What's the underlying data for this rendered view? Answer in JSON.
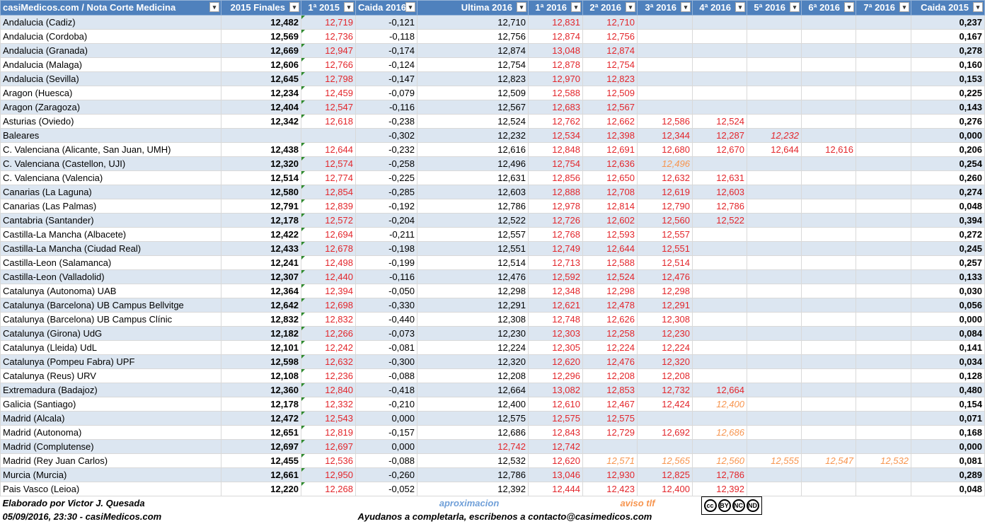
{
  "headers": [
    "casiMedicos.com / Nota Corte Medicina",
    "2015 Finales",
    "1ª 2015",
    "Caida 2016",
    "Ultima 2016",
    "1ª 2016",
    "2ª 2016",
    "3ª 2016",
    "4ª 2016",
    "5ª 2016",
    "6ª 2016",
    "7ª 2016",
    "Caida 2015"
  ],
  "rows": [
    {
      "name": "Andalucia (Cadiz)",
      "f2015": "12,482",
      "p2015": "12,719",
      "caida2016": "-0,121",
      "ultima": "12,710",
      "r1": "12,831",
      "r2": "12,710",
      "r3": "",
      "r4": "",
      "r5": "",
      "r6": "",
      "r7": "",
      "caida2015": "0,237"
    },
    {
      "name": "Andalucia (Cordoba)",
      "f2015": "12,569",
      "p2015": "12,736",
      "caida2016": "-0,118",
      "ultima": "12,756",
      "r1": "12,874",
      "r2": "12,756",
      "r3": "",
      "r4": "",
      "r5": "",
      "r6": "",
      "r7": "",
      "caida2015": "0,167"
    },
    {
      "name": "Andalucia (Granada)",
      "f2015": "12,669",
      "p2015": "12,947",
      "caida2016": "-0,174",
      "ultima": "12,874",
      "r1": "13,048",
      "r2": "12,874",
      "r3": "",
      "r4": "",
      "r5": "",
      "r6": "",
      "r7": "",
      "caida2015": "0,278"
    },
    {
      "name": "Andalucia (Malaga)",
      "f2015": "12,606",
      "p2015": "12,766",
      "caida2016": "-0,124",
      "ultima": "12,754",
      "r1": "12,878",
      "r2": "12,754",
      "r3": "",
      "r4": "",
      "r5": "",
      "r6": "",
      "r7": "",
      "caida2015": "0,160"
    },
    {
      "name": "Andalucia (Sevilla)",
      "f2015": "12,645",
      "p2015": "12,798",
      "caida2016": "-0,147",
      "ultima": "12,823",
      "r1": "12,970",
      "r2": "12,823",
      "r3": "",
      "r4": "",
      "r5": "",
      "r6": "",
      "r7": "",
      "caida2015": "0,153"
    },
    {
      "name": "Aragon (Huesca)",
      "f2015": "12,234",
      "p2015": "12,459",
      "caida2016": "-0,079",
      "ultima": "12,509",
      "r1": "12,588",
      "r2": "12,509",
      "r3": "",
      "r4": "",
      "r5": "",
      "r6": "",
      "r7": "",
      "caida2015": "0,225"
    },
    {
      "name": "Aragon (Zaragoza)",
      "f2015": "12,404",
      "p2015": "12,547",
      "caida2016": "-0,116",
      "ultima": "12,567",
      "r1": "12,683",
      "r2": "12,567",
      "r3": "",
      "r4": "",
      "r5": "",
      "r6": "",
      "r7": "",
      "caida2015": "0,143"
    },
    {
      "name": "Asturias (Oviedo)",
      "f2015": "12,342",
      "p2015": "12,618",
      "caida2016": "-0,238",
      "ultima": "12,524",
      "r1": "12,762",
      "r2": "12,662",
      "r3": "12,586",
      "r4": "12,524",
      "r5": "",
      "r6": "",
      "r7": "",
      "caida2015": "0,276"
    },
    {
      "name": "Baleares",
      "f2015": "",
      "p2015": "",
      "caida2016": "-0,302",
      "ultima": "12,232",
      "r1": "12,534",
      "r2": "12,398",
      "r3": "12,344",
      "r4": "12,287",
      "r5": "12,232",
      "r6": "",
      "r7": "",
      "caida2015": "0,000",
      "italic": [
        "r5"
      ]
    },
    {
      "name": "C. Valenciana (Alicante, San Juan, UMH)",
      "f2015": "12,438",
      "p2015": "12,644",
      "caida2016": "-0,232",
      "ultima": "12,616",
      "r1": "12,848",
      "r2": "12,691",
      "r3": "12,680",
      "r4": "12,670",
      "r5": "12,644",
      "r6": "12,616",
      "r7": "",
      "caida2015": "0,206"
    },
    {
      "name": "C. Valenciana (Castellon, UJI)",
      "f2015": "12,320",
      "p2015": "12,574",
      "caida2016": "-0,258",
      "ultima": "12,496",
      "r1": "12,754",
      "r2": "12,636",
      "r3": "12,496",
      "r4": "",
      "r5": "",
      "r6": "",
      "r7": "",
      "caida2015": "0,254",
      "orange": [
        "r3"
      ]
    },
    {
      "name": "C. Valenciana (Valencia)",
      "f2015": "12,514",
      "p2015": "12,774",
      "caida2016": "-0,225",
      "ultima": "12,631",
      "r1": "12,856",
      "r2": "12,650",
      "r3": "12,632",
      "r4": "12,631",
      "r5": "",
      "r6": "",
      "r7": "",
      "caida2015": "0,260"
    },
    {
      "name": "Canarias (La Laguna)",
      "f2015": "12,580",
      "p2015": "12,854",
      "caida2016": "-0,285",
      "ultima": "12,603",
      "r1": "12,888",
      "r2": "12,708",
      "r3": "12,619",
      "r4": "12,603",
      "r5": "",
      "r6": "",
      "r7": "",
      "caida2015": "0,274"
    },
    {
      "name": "Canarias (Las Palmas)",
      "f2015": "12,791",
      "p2015": "12,839",
      "caida2016": "-0,192",
      "ultima": "12,786",
      "r1": "12,978",
      "r2": "12,814",
      "r3": "12,790",
      "r4": "12,786",
      "r5": "",
      "r6": "",
      "r7": "",
      "caida2015": "0,048"
    },
    {
      "name": "Cantabria (Santander)",
      "f2015": "12,178",
      "p2015": "12,572",
      "caida2016": "-0,204",
      "ultima": "12,522",
      "r1": "12,726",
      "r2": "12,602",
      "r3": "12,560",
      "r4": "12,522",
      "r5": "",
      "r6": "",
      "r7": "",
      "caida2015": "0,394"
    },
    {
      "name": "Castilla-La Mancha (Albacete)",
      "f2015": "12,422",
      "p2015": "12,694",
      "caida2016": "-0,211",
      "ultima": "12,557",
      "r1": "12,768",
      "r2": "12,593",
      "r3": "12,557",
      "r4": "",
      "r5": "",
      "r6": "",
      "r7": "",
      "caida2015": "0,272"
    },
    {
      "name": "Castilla-La Mancha (Ciudad Real)",
      "f2015": "12,433",
      "p2015": "12,678",
      "caida2016": "-0,198",
      "ultima": "12,551",
      "r1": "12,749",
      "r2": "12,644",
      "r3": "12,551",
      "r4": "",
      "r5": "",
      "r6": "",
      "r7": "",
      "caida2015": "0,245"
    },
    {
      "name": "Castilla-Leon (Salamanca)",
      "f2015": "12,241",
      "p2015": "12,498",
      "caida2016": "-0,199",
      "ultima": "12,514",
      "r1": "12,713",
      "r2": "12,588",
      "r3": "12,514",
      "r4": "",
      "r5": "",
      "r6": "",
      "r7": "",
      "caida2015": "0,257"
    },
    {
      "name": "Castilla-Leon (Valladolid)",
      "f2015": "12,307",
      "p2015": "12,440",
      "caida2016": "-0,116",
      "ultima": "12,476",
      "r1": "12,592",
      "r2": "12,524",
      "r3": "12,476",
      "r4": "",
      "r5": "",
      "r6": "",
      "r7": "",
      "caida2015": "0,133"
    },
    {
      "name": "Catalunya (Autonoma) UAB",
      "f2015": "12,364",
      "p2015": "12,394",
      "caida2016": "-0,050",
      "ultima": "12,298",
      "r1": "12,348",
      "r2": "12,298",
      "r3": "12,298",
      "r4": "",
      "r5": "",
      "r6": "",
      "r7": "",
      "caida2015": "0,030"
    },
    {
      "name": "Catalunya (Barcelona) UB Campus Bellvitge",
      "f2015": "12,642",
      "p2015": "12,698",
      "caida2016": "-0,330",
      "ultima": "12,291",
      "r1": "12,621",
      "r2": "12,478",
      "r3": "12,291",
      "r4": "",
      "r5": "",
      "r6": "",
      "r7": "",
      "caida2015": "0,056"
    },
    {
      "name": "Catalunya (Barcelona) UB Campus Clínic",
      "f2015": "12,832",
      "p2015": "12,832",
      "caida2016": "-0,440",
      "ultima": "12,308",
      "r1": "12,748",
      "r2": "12,626",
      "r3": "12,308",
      "r4": "",
      "r5": "",
      "r6": "",
      "r7": "",
      "caida2015": "0,000"
    },
    {
      "name": "Catalunya (Girona) UdG",
      "f2015": "12,182",
      "p2015": "12,266",
      "caida2016": "-0,073",
      "ultima": "12,230",
      "r1": "12,303",
      "r2": "12,258",
      "r3": "12,230",
      "r4": "",
      "r5": "",
      "r6": "",
      "r7": "",
      "caida2015": "0,084"
    },
    {
      "name": "Catalunya (Lleida) UdL",
      "f2015": "12,101",
      "p2015": "12,242",
      "caida2016": "-0,081",
      "ultima": "12,224",
      "r1": "12,305",
      "r2": "12,224",
      "r3": "12,224",
      "r4": "",
      "r5": "",
      "r6": "",
      "r7": "",
      "caida2015": "0,141"
    },
    {
      "name": "Catalunya (Pompeu Fabra) UPF",
      "f2015": "12,598",
      "p2015": "12,632",
      "caida2016": "-0,300",
      "ultima": "12,320",
      "r1": "12,620",
      "r2": "12,476",
      "r3": "12,320",
      "r4": "",
      "r5": "",
      "r6": "",
      "r7": "",
      "caida2015": "0,034"
    },
    {
      "name": "Catalunya (Reus) URV",
      "f2015": "12,108",
      "p2015": "12,236",
      "caida2016": "-0,088",
      "ultima": "12,208",
      "r1": "12,296",
      "r2": "12,208",
      "r3": "12,208",
      "r4": "",
      "r5": "",
      "r6": "",
      "r7": "",
      "caida2015": "0,128"
    },
    {
      "name": "Extremadura (Badajoz)",
      "f2015": "12,360",
      "p2015": "12,840",
      "caida2016": "-0,418",
      "ultima": "12,664",
      "r1": "13,082",
      "r2": "12,853",
      "r3": "12,732",
      "r4": "12,664",
      "r5": "",
      "r6": "",
      "r7": "",
      "caida2015": "0,480"
    },
    {
      "name": "Galicia (Santiago)",
      "f2015": "12,178",
      "p2015": "12,332",
      "caida2016": "-0,210",
      "ultima": "12,400",
      "r1": "12,610",
      "r2": "12,467",
      "r3": "12,424",
      "r4": "12,400",
      "r5": "",
      "r6": "",
      "r7": "",
      "caida2015": "0,154",
      "orange": [
        "r4"
      ]
    },
    {
      "name": "Madrid (Alcala)",
      "f2015": "12,472",
      "p2015": "12,543",
      "caida2016": "0,000",
      "ultima": "12,575",
      "r1": "12,575",
      "r2": "12,575",
      "r3": "",
      "r4": "",
      "r5": "",
      "r6": "",
      "r7": "",
      "caida2015": "0,071"
    },
    {
      "name": "Madrid (Autonoma)",
      "f2015": "12,651",
      "p2015": "12,819",
      "caida2016": "-0,157",
      "ultima": "12,686",
      "r1": "12,843",
      "r2": "12,729",
      "r3": "12,692",
      "r4": "12,686",
      "r5": "",
      "r6": "",
      "r7": "",
      "caida2015": "0,168",
      "orange": [
        "r4"
      ]
    },
    {
      "name": "Madrid (Complutense)",
      "f2015": "12,697",
      "p2015": "12,697",
      "caida2016": "0,000",
      "ultima": "12,742",
      "r1": "12,742",
      "r2": "",
      "r3": "",
      "r4": "",
      "r5": "",
      "r6": "",
      "r7": "",
      "caida2015": "0,000",
      "redUltima": true
    },
    {
      "name": "Madrid (Rey Juan Carlos)",
      "f2015": "12,455",
      "p2015": "12,536",
      "caida2016": "-0,088",
      "ultima": "12,532",
      "r1": "12,620",
      "r2": "12,571",
      "r3": "12,565",
      "r4": "12,560",
      "r5": "12,555",
      "r6": "12,547",
      "r7": "12,532",
      "caida2015": "0,081",
      "orange": [
        "r2",
        "r3",
        "r4",
        "r5",
        "r6",
        "r7"
      ]
    },
    {
      "name": "Murcia (Murcia)",
      "f2015": "12,661",
      "p2015": "12,950",
      "caida2016": "-0,260",
      "ultima": "12,786",
      "r1": "13,046",
      "r2": "12,930",
      "r3": "12,825",
      "r4": "12,786",
      "r5": "",
      "r6": "",
      "r7": "",
      "caida2015": "0,289"
    },
    {
      "name": "Pais Vasco (Leioa)",
      "f2015": "12,220",
      "p2015": "12,268",
      "caida2016": "-0,052",
      "ultima": "12,392",
      "r1": "12,444",
      "r2": "12,423",
      "r3": "12,400",
      "r4": "12,392",
      "r5": "",
      "r6": "",
      "r7": "",
      "caida2015": "0,048"
    }
  ],
  "footer": {
    "author": "Elaborado por Victor J. Quesada",
    "approx": "aproximacion",
    "aviso": "aviso tlf",
    "date": "05/09/2016, 23:30 - casiMedicos.com",
    "help": "Ayudanos a completarla, escribenos a contacto@casimedicos.com",
    "license_terms": [
      "BY",
      "NC",
      "ND"
    ]
  },
  "colors": {
    "header_bg": "#4f81bd",
    "band": "#dce6f1",
    "red": "#e3262b",
    "orange": "#f7954f",
    "approx_blue": "#6f9fd8"
  }
}
